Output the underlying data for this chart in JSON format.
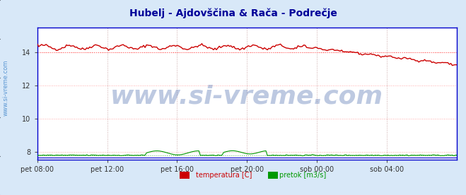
{
  "title": "Hubelj - Ajdovščina & Rača - Podrečje",
  "title_color": "#000099",
  "title_fontsize": 10,
  "bg_color": "#d8e8f8",
  "plot_bg_color": "#ffffff",
  "xticklabels": [
    "pet 08:00",
    "pet 12:00",
    "pet 16:00",
    "pet 20:00",
    "sob 00:00",
    "sob 04:00"
  ],
  "xtick_positions": [
    0,
    48,
    96,
    144,
    192,
    240
  ],
  "n_points": 289,
  "ylim": [
    7.5,
    15.5
  ],
  "yticks": [
    8,
    10,
    12,
    14
  ],
  "ytick_labels": [
    "8",
    "10",
    "12",
    "14"
  ],
  "temp_avg": 14.0,
  "watermark": "www.si-vreme.com",
  "watermark_color": "#4466aa",
  "watermark_alpha": 0.35,
  "watermark_fontsize": 26,
  "sidebar_text": "www.si-vreme.com",
  "sidebar_color": "#4488cc",
  "sidebar_fontsize": 6,
  "temp_line_color": "#cc0000",
  "temp_avg_line_color": "#ff6666",
  "pretok_line_color": "#009900",
  "pretok_avg_line_color": "#66cc66",
  "blue_line_color": "#0000cc",
  "grid_color_h": "#ffaaaa",
  "grid_color_v": "#ccaaaa",
  "legend_temp_color": "#cc0000",
  "legend_pretok_color": "#009900",
  "frame_color": "#0000cc",
  "legend_temp_label": "temperatura [C]",
  "legend_pretok_label": "pretok [m3/s]"
}
